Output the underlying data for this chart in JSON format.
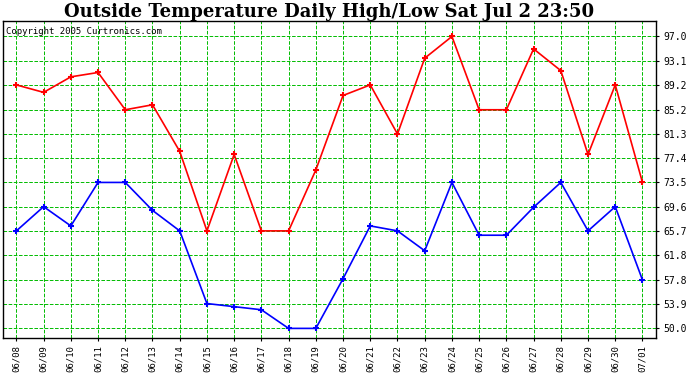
{
  "title": "Outside Temperature Daily High/Low Sat Jul 2 23:50",
  "copyright": "Copyright 2005 Curtronics.com",
  "dates": [
    "06/08",
    "06/09",
    "06/10",
    "06/11",
    "06/12",
    "06/13",
    "06/14",
    "06/15",
    "06/16",
    "06/17",
    "06/18",
    "06/19",
    "06/20",
    "06/21",
    "06/22",
    "06/23",
    "06/24",
    "06/25",
    "06/26",
    "06/27",
    "06/28",
    "06/29",
    "06/30",
    "07/01"
  ],
  "high_temps": [
    89.2,
    88.0,
    90.5,
    91.2,
    85.2,
    86.0,
    78.5,
    65.7,
    78.0,
    65.7,
    65.7,
    75.5,
    87.5,
    89.2,
    81.3,
    93.5,
    97.0,
    85.2,
    85.2,
    95.0,
    91.5,
    78.0,
    89.2,
    73.5
  ],
  "low_temps": [
    65.7,
    69.6,
    66.5,
    73.5,
    73.5,
    69.0,
    65.7,
    54.0,
    53.5,
    53.0,
    50.0,
    50.0,
    58.0,
    66.5,
    65.7,
    62.5,
    73.5,
    65.0,
    65.0,
    69.5,
    73.5,
    65.7,
    69.6,
    57.8
  ],
  "high_color": "#ff0000",
  "low_color": "#0000ff",
  "bg_color": "#ffffff",
  "plot_bg_color": "#ffffff",
  "grid_color": "#00bb00",
  "title_fontsize": 13,
  "yticks": [
    50.0,
    53.9,
    57.8,
    61.8,
    65.7,
    69.6,
    73.5,
    77.4,
    81.3,
    85.2,
    89.2,
    93.1,
    97.0
  ],
  "ylim": [
    48.5,
    99.5
  ]
}
